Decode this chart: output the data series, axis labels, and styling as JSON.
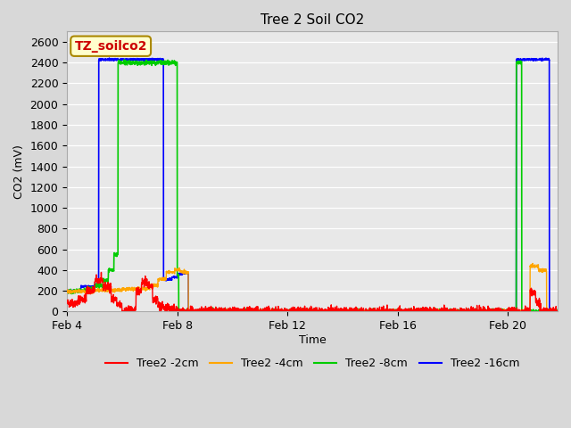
{
  "title": "Tree 2 Soil CO2",
  "xlabel": "Time",
  "ylabel": "CO2 (mV)",
  "ylim": [
    0,
    2700
  ],
  "yticks": [
    0,
    200,
    400,
    600,
    800,
    1000,
    1200,
    1400,
    1600,
    1800,
    2000,
    2200,
    2400,
    2600
  ],
  "xlim": [
    4.0,
    21.8
  ],
  "xtick_positions": [
    4,
    8,
    12,
    16,
    20
  ],
  "xtick_labels": [
    "Feb 4",
    "Feb 8",
    "Feb 12",
    "Feb 16",
    "Feb 20"
  ],
  "legend_labels": [
    "Tree2 -2cm",
    "Tree2 -4cm",
    "Tree2 -8cm",
    "Tree2 -16cm"
  ],
  "legend_colors": [
    "#ff0000",
    "#ffa500",
    "#00cc00",
    "#0000ff"
  ],
  "annotation_text": "TZ_soilco2",
  "annotation_color": "#cc0000",
  "annotation_bg": "#ffffcc",
  "annotation_border": "#aa8800",
  "fig_bg": "#d8d8d8",
  "plot_bg": "#e8e8e8",
  "grid_color": "#ffffff",
  "title_fontsize": 11,
  "axis_fontsize": 9,
  "legend_fontsize": 9
}
